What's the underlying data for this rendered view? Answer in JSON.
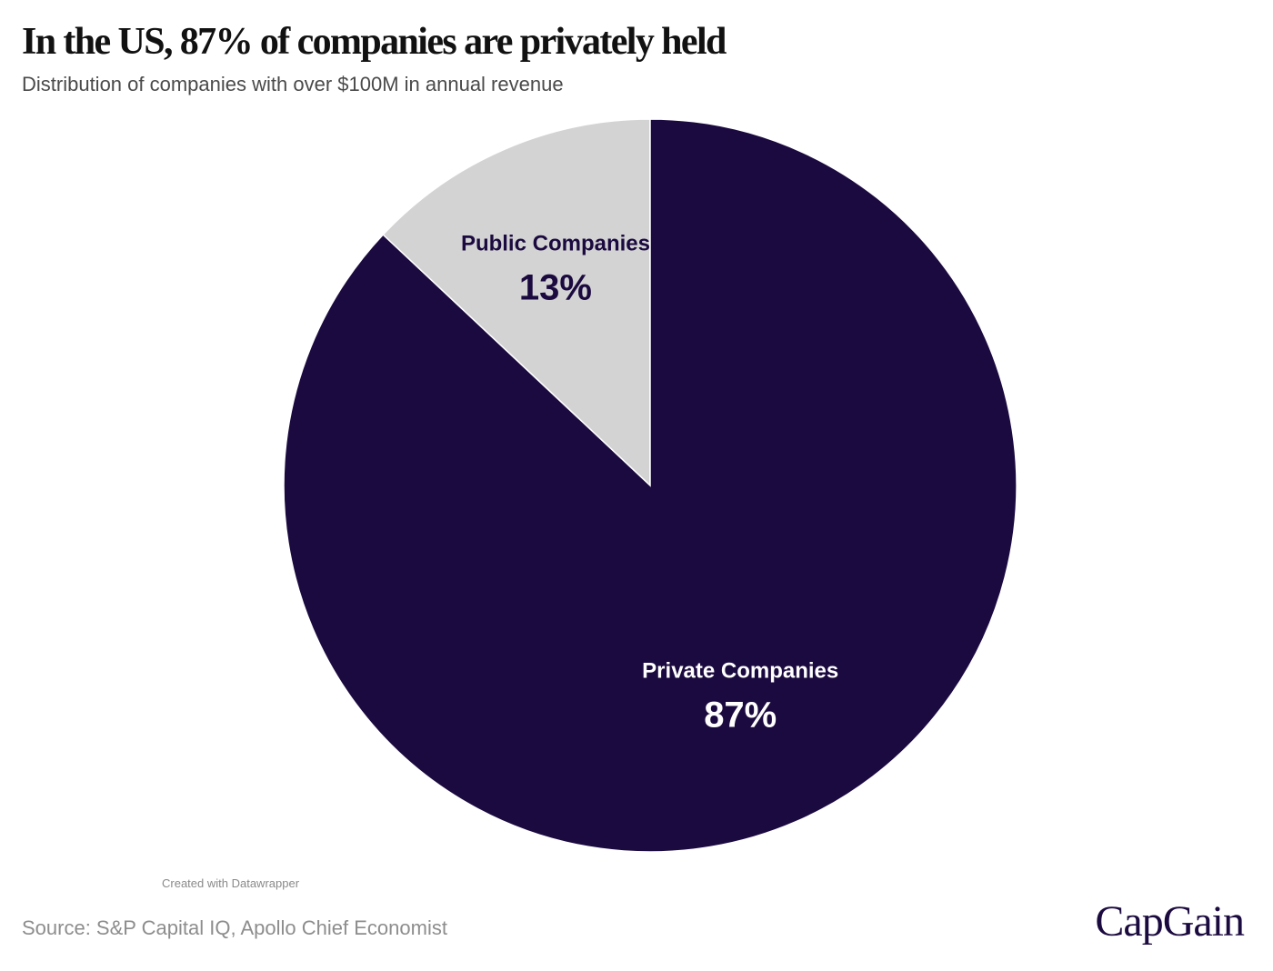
{
  "header": {
    "title": "In the US, 87% of companies are privately held",
    "subtitle": "Distribution of companies with over $100M in annual revenue"
  },
  "chart_data": {
    "type": "pie",
    "title": "In the US, 87% of companies are privately held",
    "subtitle": "Distribution of companies with over $100M in annual revenue",
    "slices": [
      {
        "name": "Public Companies",
        "value": 13,
        "label": "13%",
        "color": "#d3d3d3",
        "text_color": "#1b0a3f"
      },
      {
        "name": "Private Companies",
        "value": 87,
        "label": "87%",
        "color": "#1b0a3f",
        "text_color": "#ffffff"
      }
    ]
  },
  "footer": {
    "credit": "Created with Datawrapper",
    "source": "Source: S&P Capital IQ, Apollo Chief Economist",
    "brand": "CapGain"
  }
}
